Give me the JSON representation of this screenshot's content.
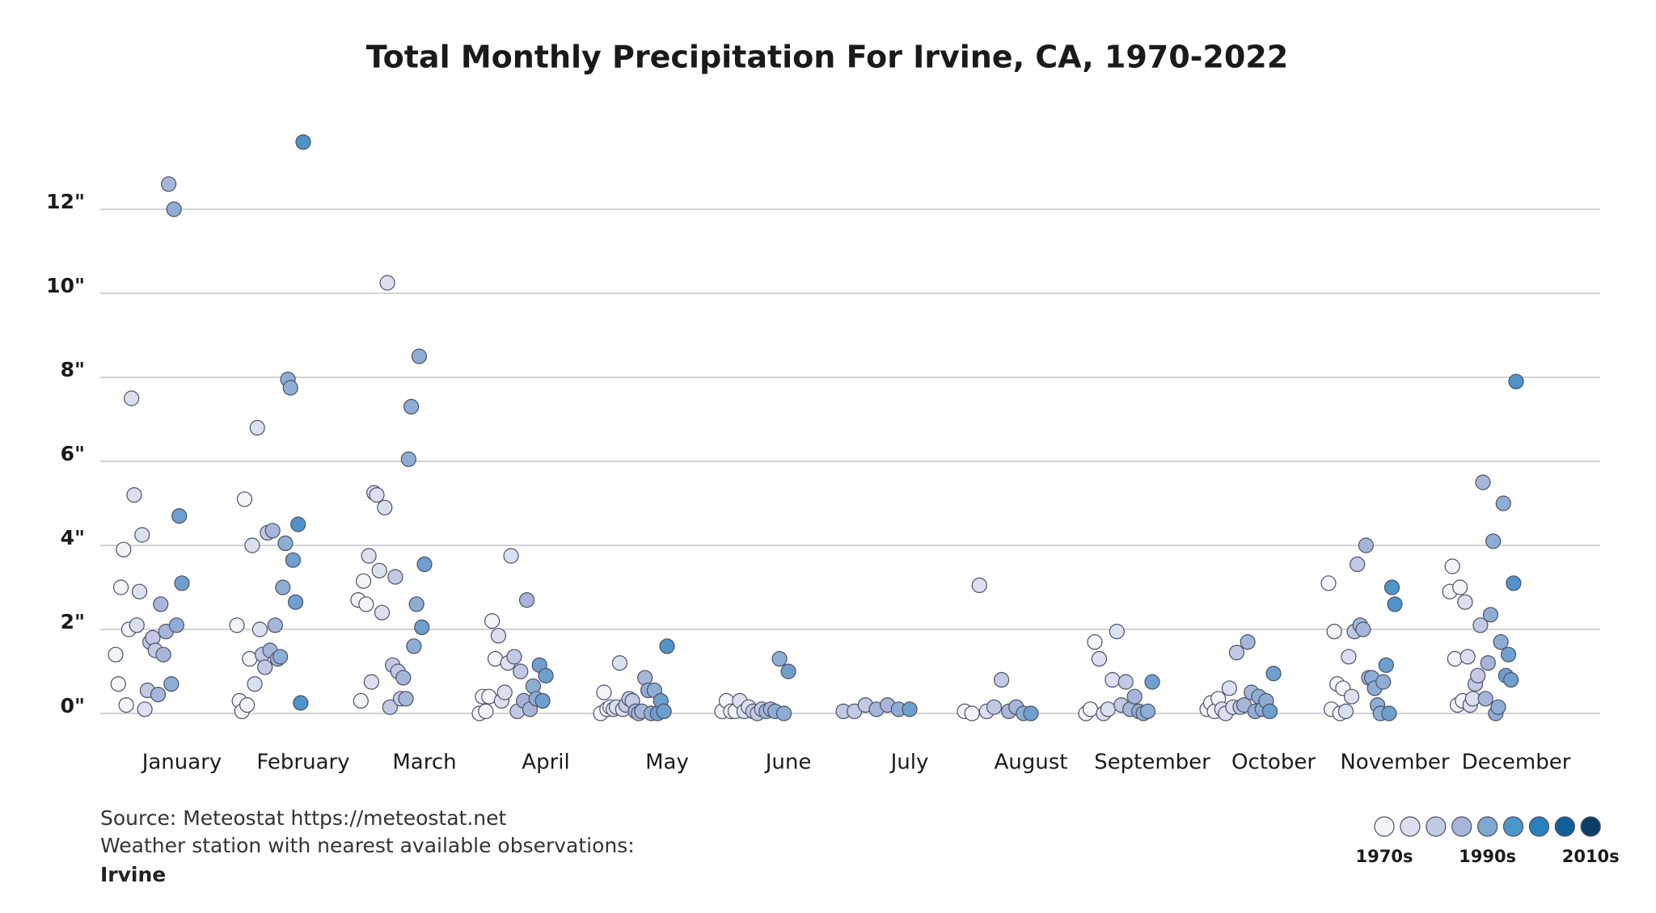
{
  "chart_data": {
    "type": "strip",
    "title": "Total Monthly Precipitation For Irvine, CA, 1970-2022",
    "categories": [
      "January",
      "February",
      "March",
      "April",
      "May",
      "June",
      "July",
      "August",
      "September",
      "October",
      "November",
      "December"
    ],
    "ylim": [
      0,
      14
    ],
    "yticks": [
      {
        "value": 0,
        "label": "0\""
      },
      {
        "value": 2,
        "label": "2\""
      },
      {
        "value": 4,
        "label": "4\""
      },
      {
        "value": 6,
        "label": "6\""
      },
      {
        "value": 8,
        "label": "8\""
      },
      {
        "value": 10,
        "label": "10\""
      },
      {
        "value": 12,
        "label": "12\""
      }
    ],
    "grid": true,
    "values": [
      [
        1.4,
        0.7,
        3.0,
        3.9,
        0.2,
        2.0,
        7.5,
        5.2,
        2.1,
        2.9,
        4.25,
        0.1,
        0.55,
        1.7,
        1.8,
        1.5,
        0.45,
        2.6,
        1.4,
        1.95,
        12.6,
        0.7,
        12.0,
        2.1,
        4.7,
        3.1
      ],
      [
        2.1,
        0.3,
        0.05,
        5.1,
        0.2,
        1.3,
        4.0,
        0.7,
        6.8,
        2.0,
        1.4,
        1.1,
        4.3,
        1.5,
        4.35,
        2.1,
        1.3,
        1.35,
        3.0,
        4.05,
        7.95,
        7.75,
        3.65,
        2.65,
        4.5,
        0.25,
        13.6
      ],
      [
        2.7,
        0.3,
        3.15,
        2.6,
        3.75,
        0.75,
        5.25,
        5.2,
        3.4,
        2.4,
        4.9,
        10.25,
        0.15,
        1.15,
        3.25,
        1.0,
        0.35,
        0.85,
        0.35,
        6.05,
        7.3,
        1.6,
        2.6,
        8.5,
        2.05,
        3.55
      ],
      [
        0.0,
        0.4,
        0.05,
        0.4,
        2.2,
        1.3,
        1.85,
        0.3,
        0.5,
        1.2,
        3.75,
        1.35,
        0.05,
        1.0,
        0.3,
        2.7,
        0.1,
        0.65,
        0.35,
        1.15,
        0.3,
        0.9
      ],
      [
        0.0,
        0.5,
        0.1,
        0.15,
        0.1,
        0.15,
        1.2,
        0.1,
        0.2,
        0.35,
        0.3,
        0.05,
        0.0,
        0.05,
        0.85,
        0.55,
        0.0,
        0.55,
        0.0,
        0.3,
        0.05,
        1.6
      ],
      [
        0.05,
        0.3,
        0.05,
        0.05,
        0.3,
        0.05,
        0.15,
        0.05,
        0.0,
        0.1,
        0.05,
        0.1,
        0.05,
        1.3,
        0.0,
        1.0
      ],
      [
        0.05,
        0.05,
        0.2,
        0.1,
        0.2,
        0.1,
        0.1
      ],
      [
        0.05,
        0.0,
        3.05,
        0.05,
        0.15,
        0.8,
        0.05,
        0.15,
        0.0,
        0.0
      ],
      [
        0.0,
        0.1,
        1.7,
        1.3,
        0.0,
        0.1,
        0.8,
        1.95,
        0.2,
        0.75,
        0.1,
        0.4,
        0.05,
        0.0,
        0.05,
        0.75
      ],
      [
        0.1,
        0.25,
        0.05,
        0.35,
        0.1,
        0.0,
        0.6,
        0.15,
        1.45,
        0.15,
        0.2,
        1.7,
        0.5,
        0.05,
        0.4,
        0.1,
        0.3,
        0.05,
        0.95
      ],
      [
        3.1,
        0.1,
        1.95,
        0.7,
        0.0,
        0.6,
        0.05,
        1.35,
        0.4,
        1.95,
        3.55,
        2.1,
        2.0,
        4.0,
        0.85,
        0.85,
        0.6,
        0.2,
        0.0,
        0.75,
        1.15,
        0.0,
        3.0,
        2.6
      ],
      [
        2.9,
        3.5,
        1.3,
        0.2,
        3.0,
        0.3,
        2.65,
        1.35,
        0.2,
        0.35,
        0.7,
        0.9,
        2.1,
        5.5,
        0.35,
        1.2,
        2.35,
        4.1,
        0.0,
        0.15,
        1.7,
        5.0,
        0.9,
        1.4,
        0.8,
        3.1,
        7.9
      ]
    ],
    "point_colors": [
      [
        "#f3f4fa",
        "#f3f4fa",
        "#f3f4fa",
        "#f3f4fa",
        "#f3f4fa",
        "#f3f4fa",
        "#dcdfee",
        "#dcdfee",
        "#dcdfee",
        "#dcdfee",
        "#dcdfee",
        "#dcdfee",
        "#c3c9e3",
        "#c3c9e3",
        "#c3c9e3",
        "#c3c9e3",
        "#a7b6d8",
        "#a7b6d8",
        "#a7b6d8",
        "#a7b6d8",
        "#a7b6d8",
        "#8eadd4",
        "#8eadd4",
        "#8eadd4",
        "#6e9fcd",
        "#6e9fcd"
      ],
      [
        "#f3f4fa",
        "#f3f4fa",
        "#f3f4fa",
        "#f3f4fa",
        "#f3f4fa",
        "#f3f4fa",
        "#dcdfee",
        "#dcdfee",
        "#dcdfee",
        "#dcdfee",
        "#c3c9e3",
        "#c3c9e3",
        "#c3c9e3",
        "#a7b6d8",
        "#a7b6d8",
        "#a7b6d8",
        "#a7b6d8",
        "#8eadd4",
        "#8eadd4",
        "#8eadd4",
        "#8eadd4",
        "#8eadd4",
        "#6e9fcd",
        "#6e9fcd",
        "#4f93c8",
        "#4f93c8",
        "#4f93c8"
      ],
      [
        "#f3f4fa",
        "#f3f4fa",
        "#f3f4fa",
        "#f3f4fa",
        "#dcdfee",
        "#dcdfee",
        "#dcdfee",
        "#dcdfee",
        "#dcdfee",
        "#dcdfee",
        "#dcdfee",
        "#dcdfee",
        "#c3c9e3",
        "#c3c9e3",
        "#c3c9e3",
        "#c3c9e3",
        "#c3c9e3",
        "#a7b6d8",
        "#a7b6d8",
        "#8eadd4",
        "#8eadd4",
        "#8eadd4",
        "#8eadd4",
        "#8eadd4",
        "#6e9fcd",
        "#6e9fcd"
      ],
      [
        "#f3f4fa",
        "#f3f4fa",
        "#f3f4fa",
        "#f3f4fa",
        "#f3f4fa",
        "#f3f4fa",
        "#dcdfee",
        "#dcdfee",
        "#dcdfee",
        "#dcdfee",
        "#dcdfee",
        "#c3c9e3",
        "#c3c9e3",
        "#c3c9e3",
        "#a7b6d8",
        "#a7b6d8",
        "#a7b6d8",
        "#8eadd4",
        "#8eadd4",
        "#6e9fcd",
        "#6e9fcd",
        "#6e9fcd"
      ],
      [
        "#f3f4fa",
        "#f3f4fa",
        "#f3f4fa",
        "#f3f4fa",
        "#dcdfee",
        "#dcdfee",
        "#dcdfee",
        "#dcdfee",
        "#c3c9e3",
        "#c3c9e3",
        "#c3c9e3",
        "#a7b6d8",
        "#a7b6d8",
        "#a7b6d8",
        "#a7b6d8",
        "#8eadd4",
        "#8eadd4",
        "#8eadd4",
        "#6e9fcd",
        "#6e9fcd",
        "#6e9fcd",
        "#4f93c8"
      ],
      [
        "#f3f4fa",
        "#f3f4fa",
        "#f3f4fa",
        "#f3f4fa",
        "#dcdfee",
        "#dcdfee",
        "#dcdfee",
        "#c3c9e3",
        "#c3c9e3",
        "#c3c9e3",
        "#a7b6d8",
        "#a7b6d8",
        "#8eadd4",
        "#8eadd4",
        "#8eadd4",
        "#6e9fcd"
      ],
      [
        "#c3c9e3",
        "#c3c9e3",
        "#c3c9e3",
        "#a7b6d8",
        "#a7b6d8",
        "#8eadd4",
        "#6e9fcd"
      ],
      [
        "#f3f4fa",
        "#f3f4fa",
        "#dcdfee",
        "#dcdfee",
        "#c3c9e3",
        "#c3c9e3",
        "#a7b6d8",
        "#a7b6d8",
        "#8eadd4",
        "#6e9fcd"
      ],
      [
        "#f3f4fa",
        "#f3f4fa",
        "#f3f4fa",
        "#dcdfee",
        "#dcdfee",
        "#dcdfee",
        "#dcdfee",
        "#dcdfee",
        "#c3c9e3",
        "#c3c9e3",
        "#a7b6d8",
        "#a7b6d8",
        "#8eadd4",
        "#8eadd4",
        "#8eadd4",
        "#6e9fcd"
      ],
      [
        "#f3f4fa",
        "#f3f4fa",
        "#f3f4fa",
        "#f3f4fa",
        "#dcdfee",
        "#dcdfee",
        "#dcdfee",
        "#dcdfee",
        "#c3c9e3",
        "#c3c9e3",
        "#a7b6d8",
        "#a7b6d8",
        "#a7b6d8",
        "#8eadd4",
        "#8eadd4",
        "#8eadd4",
        "#8eadd4",
        "#6e9fcd",
        "#6e9fcd"
      ],
      [
        "#f3f4fa",
        "#f3f4fa",
        "#f3f4fa",
        "#f3f4fa",
        "#f3f4fa",
        "#f3f4fa",
        "#dcdfee",
        "#dcdfee",
        "#dcdfee",
        "#c3c9e3",
        "#c3c9e3",
        "#a7b6d8",
        "#a7b6d8",
        "#a7b6d8",
        "#a7b6d8",
        "#8eadd4",
        "#8eadd4",
        "#8eadd4",
        "#8eadd4",
        "#8eadd4",
        "#6e9fcd",
        "#6e9fcd",
        "#4f93c8",
        "#4f93c8"
      ],
      [
        "#f3f4fa",
        "#f3f4fa",
        "#f3f4fa",
        "#f3f4fa",
        "#f3f4fa",
        "#f3f4fa",
        "#dcdfee",
        "#dcdfee",
        "#dcdfee",
        "#dcdfee",
        "#c3c9e3",
        "#c3c9e3",
        "#c3c9e3",
        "#a7b6d8",
        "#a7b6d8",
        "#a7b6d8",
        "#8eadd4",
        "#8eadd4",
        "#8eadd4",
        "#8eadd4",
        "#8eadd4",
        "#8eadd4",
        "#6e9fcd",
        "#6e9fcd",
        "#6e9fcd",
        "#4f93c8",
        "#4f93c8"
      ]
    ],
    "legend": {
      "colors": [
        "#f3f4fa",
        "#dcdfee",
        "#c3c9e3",
        "#a7b6d8",
        "#7fa9d2",
        "#4c96c9",
        "#2a80ba",
        "#125f99",
        "#0b3f66"
      ],
      "labels": [
        "1970s",
        null,
        null,
        null,
        "1990s",
        null,
        null,
        null,
        "2010s"
      ]
    },
    "source": "Source: Meteostat https://meteostat.net",
    "station_note": "Weather station with nearest available observations:",
    "station": "Irvine"
  }
}
